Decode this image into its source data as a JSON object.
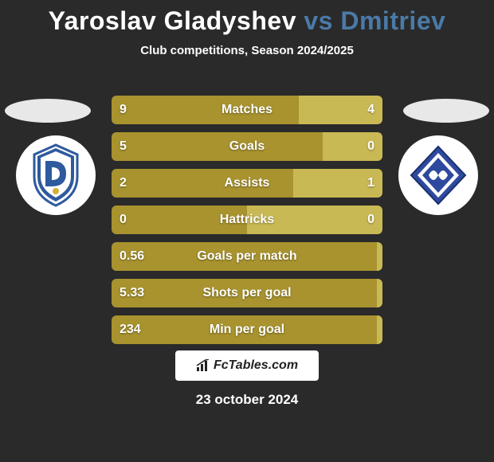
{
  "title": {
    "left": "Yaroslav Gladyshev",
    "vs": "vs",
    "right": "Dmitriev"
  },
  "subtitle": "Club competitions, Season 2024/2025",
  "stats": [
    {
      "label": "Matches",
      "left_value": "9",
      "right_value": "4",
      "left_pct": 69,
      "right_pct": 31
    },
    {
      "label": "Goals",
      "left_value": "5",
      "right_value": "0",
      "left_pct": 78,
      "right_pct": 22
    },
    {
      "label": "Assists",
      "left_value": "2",
      "right_value": "1",
      "left_pct": 67,
      "right_pct": 33
    },
    {
      "label": "Hattricks",
      "left_value": "0",
      "right_value": "0",
      "left_pct": 50,
      "right_pct": 50
    },
    {
      "label": "Goals per match",
      "left_value": "0.56",
      "right_value": "",
      "left_pct": 98,
      "right_pct": 2
    },
    {
      "label": "Shots per goal",
      "left_value": "5.33",
      "right_value": "",
      "left_pct": 98,
      "right_pct": 2
    },
    {
      "label": "Min per goal",
      "left_value": "234",
      "right_value": "",
      "left_pct": 98,
      "right_pct": 2
    }
  ],
  "colors": {
    "background": "#2a2a2a",
    "title_left": "#ffffff",
    "title_right": "#4a7aa8",
    "bar_left": "#a8932f",
    "bar_right": "#c9b955",
    "bar_track": "#5a5a3a",
    "ellipse": "#e8e8e8",
    "badge_bg": "#ffffff",
    "text": "#ffffff"
  },
  "brand": "FcTables.com",
  "date": "23 october 2024",
  "badges": {
    "left": {
      "primary": "#2e5a9e",
      "accent": "#d4af37"
    },
    "right": {
      "primary": "#2e4a9e"
    }
  }
}
